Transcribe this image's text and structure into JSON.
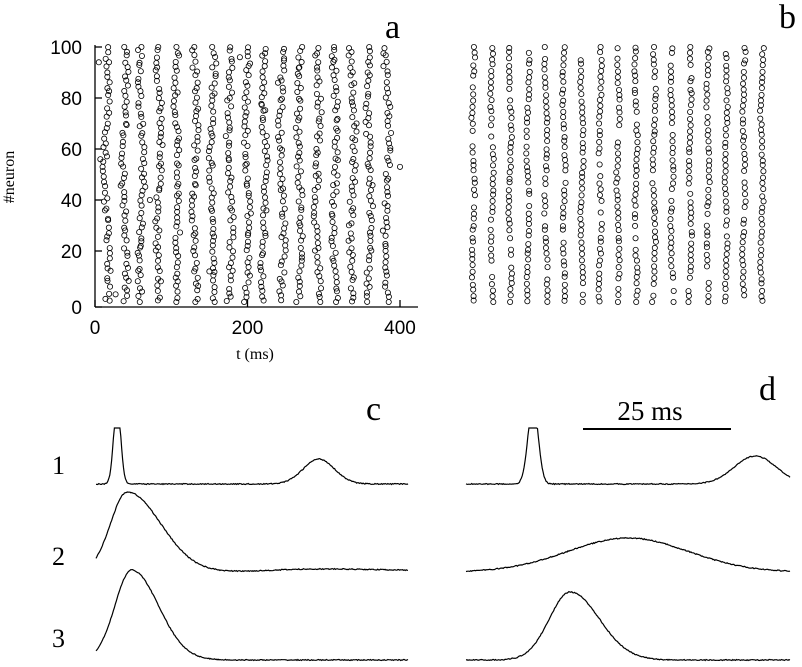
{
  "chart_data": [
    {
      "panel": "a",
      "type": "scatter",
      "marker": "open-circle",
      "xlabel": "t (ms)",
      "ylabel": "#neuron",
      "xlim": [
        0,
        400
      ],
      "ylim": [
        0,
        100
      ],
      "x_ticks": [
        "0",
        "200",
        "400"
      ],
      "y_ticks": [
        "0",
        "20",
        "40",
        "60",
        "80",
        "100"
      ],
      "burst_times_ms": [
        15,
        39,
        61,
        84,
        108,
        131,
        154,
        177,
        200,
        222,
        245,
        268,
        292,
        315,
        338,
        360,
        383
      ],
      "burst_width_ms": 5,
      "jitter_ms": 6,
      "spikes_per_burst": 52,
      "isolated_spikes": [
        {
          "x": 400,
          "y": 53
        },
        {
          "x": 7,
          "y": 56
        },
        {
          "x": 5,
          "y": 94
        },
        {
          "x": 240,
          "y": 86
        },
        {
          "x": 268,
          "y": 92
        },
        {
          "x": 314,
          "y": 95
        },
        {
          "x": 27,
          "y": 3
        },
        {
          "x": 72,
          "y": 40
        },
        {
          "x": 150,
          "y": 12
        },
        {
          "x": 221,
          "y": 75
        },
        {
          "x": 60,
          "y": 22
        },
        {
          "x": 190,
          "y": 96
        }
      ]
    },
    {
      "panel": "b",
      "type": "scatter",
      "marker": "open-circle",
      "xlim": [
        0,
        400
      ],
      "ylim": [
        0,
        100
      ],
      "burst_times_ms": [
        8,
        32,
        55,
        78,
        101,
        124,
        147,
        170,
        193,
        216,
        239,
        262,
        285,
        308,
        331,
        354,
        377
      ],
      "burst_width_ms": 3,
      "jitter_ms": 2,
      "spikes_per_burst": 44
    },
    {
      "panel": "c",
      "type": "line",
      "trace_labels": [
        "1",
        "2",
        "3"
      ],
      "traces": [
        {
          "label": "1",
          "peaks": [
            {
              "t": 0.95,
              "w": 0.16,
              "a": 80
            },
            {
              "t": 10.0,
              "w": 0.7,
              "a": 25
            }
          ]
        },
        {
          "label": "2",
          "peaks": [
            {
              "t": 1.4,
              "w": 0.75,
              "a": 80
            },
            {
              "t": 10.0,
              "w": 2.0,
              "a": 3
            }
          ],
          "skew": 2.0
        },
        {
          "label": "3",
          "peaks": [
            {
              "t": 1.6,
              "w": 0.75,
              "a": 90
            }
          ],
          "skew": 1.6
        }
      ]
    },
    {
      "panel": "d",
      "type": "line",
      "scale_bar": "25 ms",
      "traces": [
        {
          "label": "1",
          "peaks": [
            {
              "t": 2.9,
              "w": 0.22,
              "a": 80
            },
            {
              "t": 12.5,
              "w": 0.9,
              "a": 28
            }
          ]
        },
        {
          "label": "2",
          "peaks": [
            {
              "t": 7.0,
              "w": 2.6,
              "a": 34
            }
          ]
        },
        {
          "label": "3",
          "peaks": [
            {
              "t": 4.5,
              "w": 0.9,
              "a": 68
            }
          ],
          "skew": 1.4
        }
      ]
    }
  ],
  "labels": {
    "panel_a": "a",
    "panel_b": "b",
    "panel_c": "c",
    "panel_d": "d",
    "xlabel": "t (ms)",
    "ylabel": "#neuron",
    "trace_1": "1",
    "trace_2": "2",
    "trace_3": "3",
    "scalebar": "25 ms"
  }
}
